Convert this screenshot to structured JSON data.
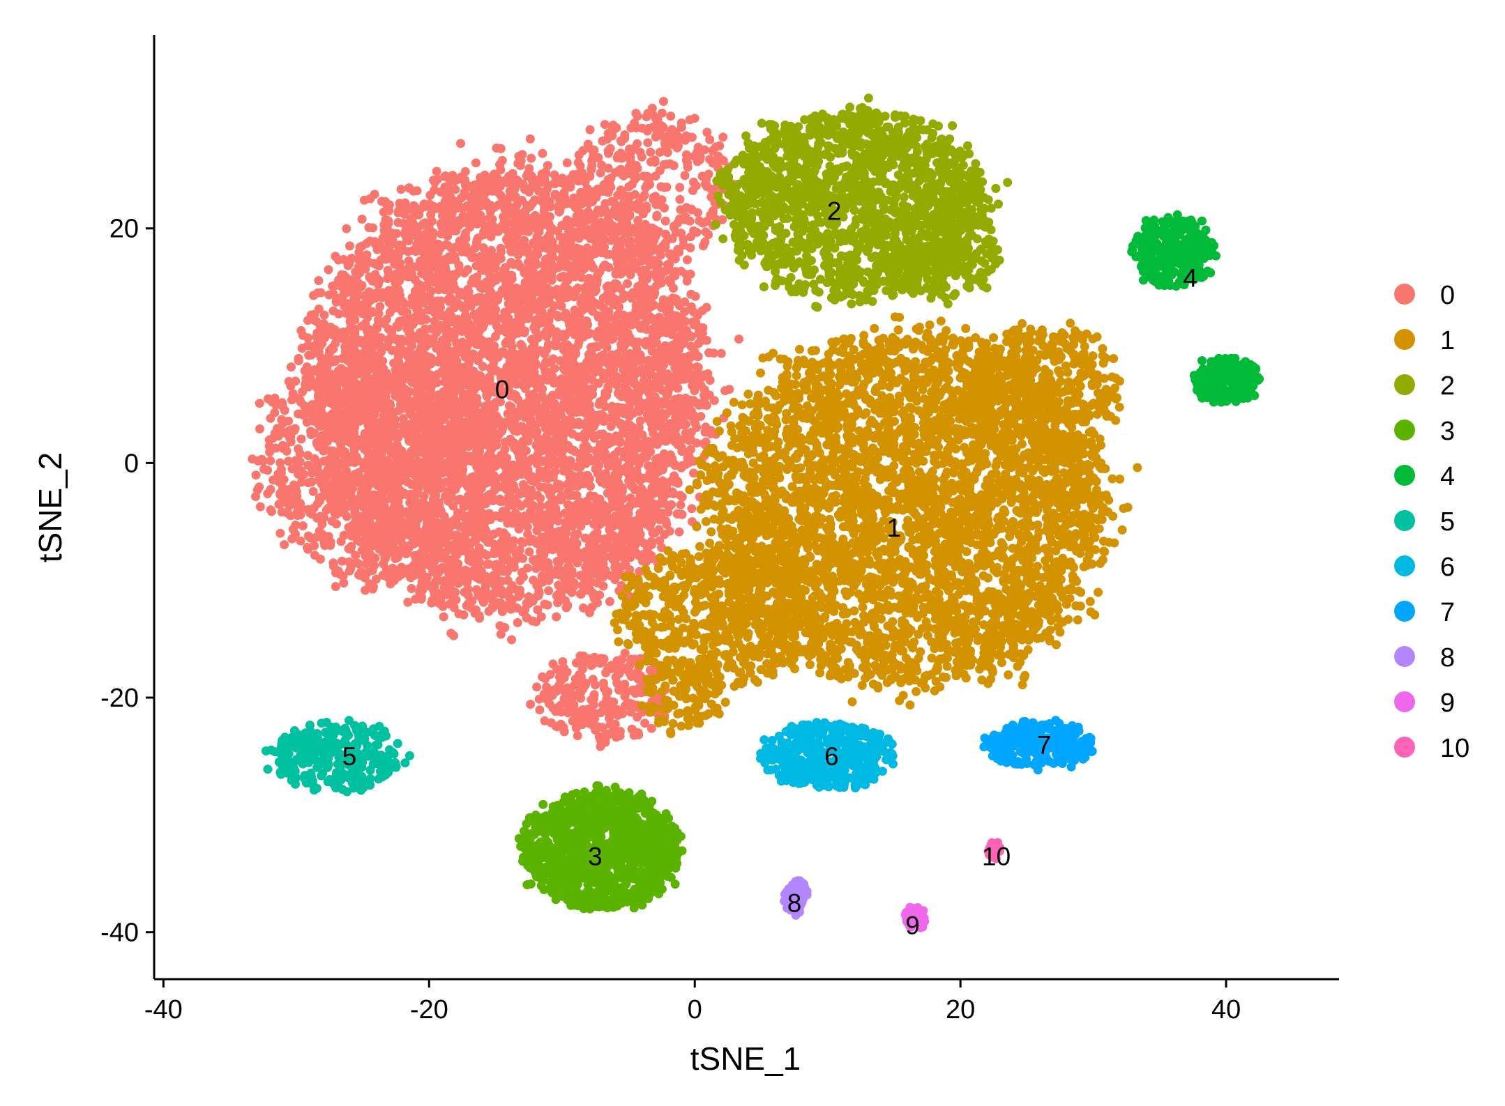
{
  "chart_data": {
    "type": "scatter",
    "xlabel": "tSNE_1",
    "ylabel": "tSNE_2",
    "xlim": [
      -40.7,
      48.5
    ],
    "ylim": [
      -44,
      36.5
    ],
    "x_ticks": [
      -40,
      -20,
      0,
      20,
      40
    ],
    "y_ticks": [
      -40,
      -20,
      0,
      20
    ],
    "grid": false,
    "legend_position": "right",
    "series": [
      {
        "name": "0",
        "color": "#F8766D",
        "label_pos": [
          -14.5,
          6.3
        ],
        "blobs": [
          [
            -14,
            6,
            15,
            19,
            5200
          ],
          [
            -24,
            0,
            9,
            10,
            800
          ],
          [
            -7,
            -20,
            5,
            4,
            250
          ],
          [
            -3,
            24,
            6,
            6,
            300
          ]
        ]
      },
      {
        "name": "1",
        "color": "#D39200",
        "label_pos": [
          15,
          -5.5
        ],
        "blobs": [
          [
            16,
            -4,
            15,
            15,
            3800
          ],
          [
            2,
            -13,
            8,
            6,
            600
          ],
          [
            -1,
            -20,
            3,
            3,
            100
          ],
          [
            26,
            6,
            6,
            6,
            400
          ]
        ]
      },
      {
        "name": "2",
        "color": "#93AA00",
        "label_pos": [
          10.5,
          21.5
        ],
        "blobs": [
          [
            12,
            22,
            10,
            8,
            1500
          ],
          [
            19,
            18,
            4,
            4,
            200
          ]
        ]
      },
      {
        "name": "3",
        "color": "#5BB300",
        "label_pos": [
          -7.5,
          -33.5
        ],
        "blobs": [
          [
            -7,
            -33,
            6,
            5,
            1000
          ]
        ]
      },
      {
        "name": "4",
        "color": "#00BA38",
        "label_pos": [
          37.3,
          15.8
        ],
        "blobs": [
          [
            36,
            18,
            3,
            3,
            300
          ],
          [
            40,
            7,
            2.5,
            2,
            180
          ]
        ]
      },
      {
        "name": "5",
        "color": "#00C19F",
        "label_pos": [
          -26,
          -25
        ],
        "blobs": [
          [
            -27,
            -25,
            5,
            3,
            260
          ]
        ]
      },
      {
        "name": "6",
        "color": "#00B9E3",
        "label_pos": [
          10.3,
          -25
        ],
        "blobs": [
          [
            10,
            -25,
            5,
            2.8,
            400
          ]
        ]
      },
      {
        "name": "7",
        "color": "#00A6FF",
        "label_pos": [
          26.3,
          -24
        ],
        "blobs": [
          [
            26,
            -24,
            4,
            2,
            260
          ]
        ]
      },
      {
        "name": "8",
        "color": "#B385FF",
        "label_pos": [
          7.5,
          -37.5
        ],
        "blobs": [
          [
            7.6,
            -37,
            0.9,
            1.6,
            60
          ]
        ]
      },
      {
        "name": "9",
        "color": "#EF67EB",
        "label_pos": [
          16.4,
          -39.4
        ],
        "blobs": [
          [
            16.6,
            -38.8,
            0.8,
            1.0,
            70
          ]
        ]
      },
      {
        "name": "10",
        "color": "#FF63B6",
        "label_pos": [
          22.7,
          -33.5
        ],
        "blobs": [
          [
            22.6,
            -33,
            0.5,
            0.9,
            30
          ]
        ]
      }
    ]
  }
}
